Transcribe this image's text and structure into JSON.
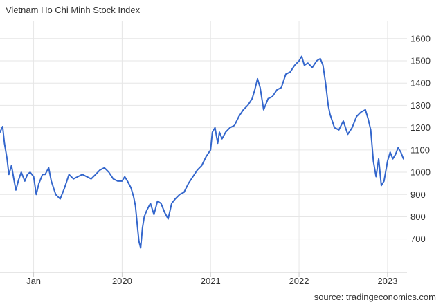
{
  "title": "Vietnam Ho Chi Minh Stock Index",
  "source": "source: tradingeconomics.com",
  "colors": {
    "line": "#3366cc",
    "grid": "#e6e6e6",
    "axis": "#cccccc",
    "text": "#333333"
  },
  "chart_data": {
    "type": "line",
    "title": "Vietnam Ho Chi Minh Stock Index",
    "xlabel": "",
    "ylabel": "",
    "ylim": [
      550,
      1680
    ],
    "xlim": [
      2018.62,
      2023.22
    ],
    "grid": true,
    "legend": "none",
    "y_ticks": [
      700,
      800,
      900,
      1000,
      1100,
      1200,
      1300,
      1400,
      1500,
      1600
    ],
    "x_ticks": [
      {
        "label": "Jan",
        "x": 2019.0
      },
      {
        "label": "2020",
        "x": 2020.0
      },
      {
        "label": "2021",
        "x": 2021.0
      },
      {
        "label": "2022",
        "x": 2022.0
      },
      {
        "label": "2023",
        "x": 2023.0
      }
    ],
    "series": [
      {
        "x": [
          2018.62,
          2018.65,
          2018.67,
          2018.7,
          2018.72,
          2018.75,
          2018.78,
          2018.8,
          2018.83,
          2018.86,
          2018.9,
          2018.93,
          2018.96,
          2019.0,
          2019.03,
          2019.06,
          2019.1,
          2019.13,
          2019.17,
          2019.2,
          2019.25,
          2019.3,
          2019.35,
          2019.4,
          2019.45,
          2019.5,
          2019.55,
          2019.6,
          2019.65,
          2019.7,
          2019.75,
          2019.8,
          2019.85,
          2019.9,
          2019.95,
          2020.0,
          2020.03,
          2020.06,
          2020.1,
          2020.13,
          2020.15,
          2020.17,
          2020.19,
          2020.21,
          2020.23,
          2020.25,
          2020.28,
          2020.32,
          2020.36,
          2020.4,
          2020.44,
          2020.48,
          2020.52,
          2020.56,
          2020.6,
          2020.65,
          2020.7,
          2020.75,
          2020.8,
          2020.85,
          2020.9,
          2020.95,
          2021.0,
          2021.02,
          2021.05,
          2021.08,
          2021.1,
          2021.13,
          2021.17,
          2021.22,
          2021.27,
          2021.32,
          2021.37,
          2021.42,
          2021.47,
          2021.5,
          2021.53,
          2021.56,
          2021.6,
          2021.65,
          2021.7,
          2021.75,
          2021.8,
          2021.85,
          2021.9,
          2021.95,
          2022.0,
          2022.03,
          2022.06,
          2022.1,
          2022.15,
          2022.2,
          2022.24,
          2022.27,
          2022.3,
          2022.33,
          2022.35,
          2022.4,
          2022.45,
          2022.5,
          2022.55,
          2022.6,
          2022.65,
          2022.7,
          2022.75,
          2022.78,
          2022.81,
          2022.84,
          2022.87,
          2022.9,
          2022.93,
          2022.96,
          2023.0,
          2023.03,
          2023.06,
          2023.09,
          2023.12,
          2023.15,
          2023.18
        ],
        "values": [
          1180,
          1205,
          1130,
          1060,
          990,
          1030,
          960,
          920,
          965,
          1000,
          960,
          990,
          1000,
          980,
          900,
          950,
          990,
          990,
          1020,
          960,
          900,
          880,
          930,
          990,
          970,
          980,
          990,
          980,
          970,
          990,
          1010,
          1020,
          1000,
          970,
          960,
          960,
          980,
          960,
          930,
          890,
          850,
          770,
          690,
          660,
          750,
          800,
          830,
          860,
          810,
          870,
          860,
          820,
          790,
          860,
          880,
          900,
          910,
          950,
          980,
          1010,
          1030,
          1070,
          1100,
          1180,
          1200,
          1130,
          1180,
          1150,
          1180,
          1200,
          1210,
          1250,
          1280,
          1300,
          1330,
          1370,
          1420,
          1380,
          1280,
          1330,
          1340,
          1370,
          1380,
          1440,
          1450,
          1480,
          1500,
          1520,
          1480,
          1490,
          1470,
          1500,
          1510,
          1480,
          1400,
          1300,
          1260,
          1200,
          1190,
          1230,
          1170,
          1200,
          1250,
          1270,
          1280,
          1240,
          1190,
          1050,
          980,
          1060,
          940,
          960,
          1050,
          1090,
          1060,
          1080,
          1110,
          1090,
          1060
        ]
      }
    ]
  }
}
